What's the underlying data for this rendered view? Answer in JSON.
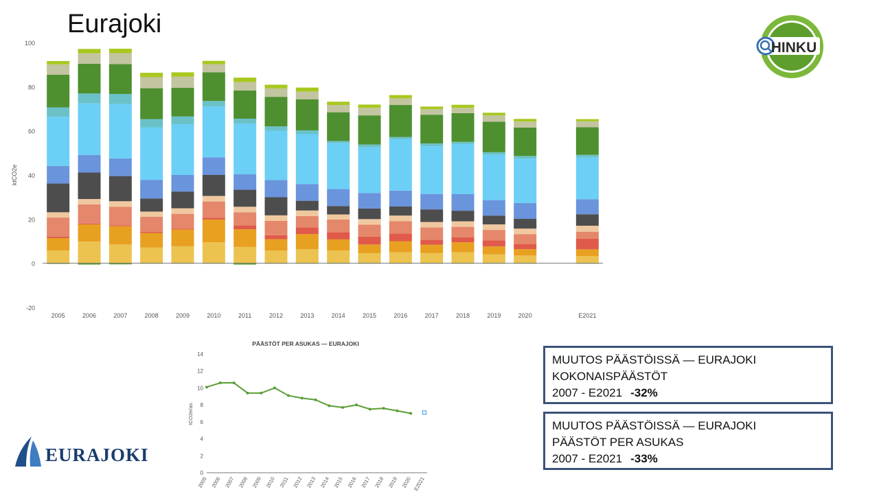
{
  "page": {
    "title": "Eurajoki"
  },
  "logos": {
    "hinku": {
      "text": "HINKU",
      "icon": "hinku-magnifier-logo"
    },
    "municipality": {
      "text": "EURAJOKI",
      "icon": "sail-logo"
    }
  },
  "boxes": {
    "total": {
      "line1": "MUUTOS PÄÄSTÖISSÄ — EURAJOKI",
      "line2": "KOKONAISPÄÄSTÖT",
      "period": "2007 - E2021",
      "change": "-32%"
    },
    "per_capita": {
      "line1": "MUUTOS PÄÄSTÖISSÄ — EURAJOKI",
      "line2": "PÄÄSTÖT PER ASUKAS",
      "period": "2007 - E2021",
      "change": "-33%"
    }
  },
  "chart_data": [
    {
      "type": "bar",
      "stacked": true,
      "title": "",
      "xlabel": "",
      "ylabel": "ktCO2e",
      "ylim": [
        -20,
        100
      ],
      "yticks": [
        -20,
        0,
        20,
        40,
        60,
        80,
        100
      ],
      "grid": false,
      "categories": [
        "2005",
        "2006",
        "2007",
        "2008",
        "2009",
        "2010",
        "2011",
        "2012",
        "2013",
        "2014",
        "2015",
        "2016",
        "2017",
        "2018",
        "2019",
        "2020",
        "E2021"
      ],
      "series": [
        {
          "color": "#5aa02c",
          "values": [
            -0.3,
            -0.6,
            -0.5,
            -0.2,
            -0.2,
            -0.2,
            -0.6,
            -0.2,
            -0.2,
            -0.2,
            -0.2,
            -0.2,
            -0.2,
            -0.2,
            -0.2,
            -0.2,
            -0.2
          ]
        },
        {
          "color": "#ecc350",
          "values": [
            5.8,
            9.8,
            8.5,
            7.1,
            7.7,
            9.5,
            7.4,
            5.7,
            6.4,
            5.8,
            4.5,
            5,
            4.6,
            5,
            4,
            3.5,
            3.2
          ]
        },
        {
          "color": "#e8a020",
          "values": [
            5.6,
            7.8,
            8.3,
            6.6,
            7.6,
            10.3,
            8,
            5.2,
            6.8,
            5,
            4,
            5,
            3.8,
            4.5,
            3.6,
            2.9,
            3.1
          ]
        },
        {
          "color": "#e05a4a",
          "values": [
            0.6,
            0.4,
            0.4,
            0.6,
            0.4,
            0.8,
            1.8,
            1.8,
            3,
            3.3,
            3.6,
            3.5,
            2.2,
            2.2,
            2.7,
            2.2,
            4.8
          ]
        },
        {
          "color": "#e5876a",
          "values": [
            8.7,
            8.7,
            8.4,
            6.8,
            6.7,
            7.4,
            5.9,
            6.5,
            5.2,
            5.7,
            5.4,
            5.6,
            5.6,
            4.8,
            4.8,
            4.6,
            3.2
          ]
        },
        {
          "color": "#f0c8a0",
          "values": [
            2.4,
            2.4,
            2.5,
            2.3,
            2.5,
            2.5,
            2.5,
            2.5,
            2.5,
            2.3,
            2.5,
            2.5,
            2.5,
            2.5,
            2.5,
            2.5,
            2.7
          ]
        },
        {
          "color": "#4d4d4d",
          "values": [
            13,
            12,
            11.4,
            5.9,
            7.6,
            9.5,
            7.7,
            8.2,
            4.4,
            3.8,
            4.8,
            4.1,
            5.7,
            4.8,
            4,
            4.4,
            5.2
          ]
        },
        {
          "color": "#6a94dc",
          "values": [
            8,
            8,
            8,
            8.5,
            7.5,
            8,
            7,
            7.8,
            7.6,
            7.7,
            7,
            7.2,
            7,
            7.5,
            7,
            7.2,
            6.8
          ]
        },
        {
          "color": "#6ccff6",
          "values": [
            22.3,
            23.3,
            24.7,
            23.8,
            23,
            23,
            23,
            22.3,
            22.6,
            20.8,
            20.7,
            23.3,
            21.6,
            22.7,
            20.5,
            20.1,
            18.9
          ]
        },
        {
          "color": "#6ac2c8",
          "values": [
            4.2,
            4.5,
            4.5,
            3.7,
            3.5,
            2.5,
            2.2,
            2,
            1.7,
            1,
            1.3,
            1,
            1.3,
            1,
            1.2,
            1.2,
            1.2
          ]
        },
        {
          "color": "#4e8f30",
          "values": [
            14.8,
            13.5,
            13.5,
            14,
            13,
            13,
            12.8,
            13.4,
            14.1,
            13,
            13.2,
            14.5,
            13,
            13,
            13.8,
            12.9,
            12.5
          ]
        },
        {
          "color": "#c3c4a0",
          "values": [
            4.7,
            4.7,
            5,
            5,
            5,
            3.7,
            3.8,
            3.8,
            3.5,
            3.3,
            3.4,
            3,
            2.5,
            2.4,
            2.9,
            2.7,
            2.7
          ]
        },
        {
          "color": "#a8c820",
          "values": [
            1.5,
            2,
            2,
            2,
            2,
            1.5,
            2,
            1.7,
            1.8,
            1.5,
            1.5,
            1.5,
            1.2,
            1.4,
            1.2,
            1.2,
            1
          ]
        }
      ]
    },
    {
      "type": "line",
      "title": "PÄÄSTÖT PER ASUKAS — EURAJOKI",
      "xlabel": "",
      "ylabel": "tCO2e/as.",
      "ylim": [
        0,
        14
      ],
      "yticks": [
        0,
        2,
        4,
        6,
        8,
        10,
        12,
        14
      ],
      "grid": false,
      "categories": [
        "2005",
        "2006",
        "2007",
        "2008",
        "2009",
        "2010",
        "2011",
        "2012",
        "2013",
        "2014",
        "2015",
        "2016",
        "2017",
        "2018",
        "2019",
        "2020",
        "E2021"
      ],
      "series": [
        {
          "color": "#5a9e35",
          "values": [
            10.1,
            10.6,
            10.6,
            9.4,
            9.4,
            10,
            9.1,
            8.8,
            8.6,
            7.9,
            7.7,
            8,
            7.5,
            7.6,
            7.3,
            7,
            null
          ]
        },
        {
          "color": "#4aa8e0",
          "marker": "square",
          "values": [
            null,
            null,
            null,
            null,
            null,
            null,
            null,
            null,
            null,
            null,
            null,
            null,
            null,
            null,
            null,
            null,
            7.1
          ]
        }
      ]
    }
  ]
}
